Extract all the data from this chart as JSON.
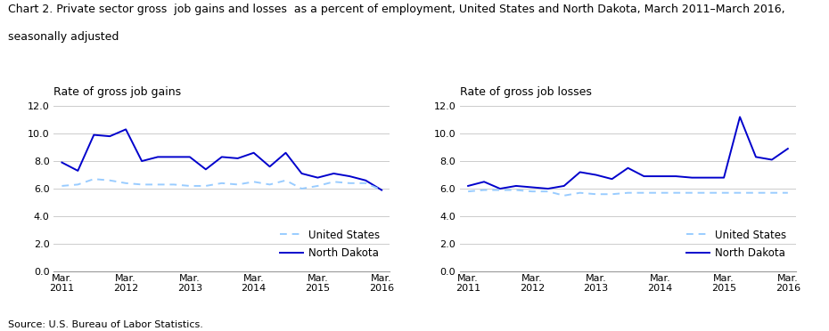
{
  "title_line1": "Chart 2. Private sector gross  job gains and losses  as a percent of employment, United States and North Dakota, March 2011–March 2016,",
  "title_line2": "seasonally adjusted",
  "title_fontsize": 9.0,
  "source": "Source: U.S. Bureau of Labor Statistics.",
  "left_subtitle": "Rate of gross job gains",
  "right_subtitle": "Rate of gross job losses",
  "x_labels": [
    "Mar.\n2011",
    "Mar.\n2012",
    "Mar.\n2013",
    "Mar.\n2014",
    "Mar.\n2015",
    "Mar.\n2016"
  ],
  "x_positions": [
    0,
    4,
    8,
    12,
    16,
    20
  ],
  "num_points": 21,
  "gains_nd": [
    7.9,
    7.3,
    9.9,
    9.8,
    10.3,
    8.0,
    8.3,
    8.3,
    8.3,
    7.4,
    8.3,
    8.2,
    8.6,
    7.6,
    8.6,
    7.1,
    6.8,
    7.1,
    6.9,
    6.6,
    5.9
  ],
  "gains_us": [
    6.2,
    6.3,
    6.7,
    6.6,
    6.4,
    6.3,
    6.3,
    6.3,
    6.2,
    6.2,
    6.4,
    6.3,
    6.5,
    6.3,
    6.6,
    6.0,
    6.2,
    6.5,
    6.4,
    6.4,
    5.9
  ],
  "losses_nd": [
    6.2,
    6.5,
    6.0,
    6.2,
    6.1,
    6.0,
    6.2,
    7.2,
    7.0,
    6.7,
    7.5,
    6.9,
    6.9,
    6.9,
    6.8,
    6.8,
    6.8,
    11.2,
    8.3,
    8.1,
    8.9
  ],
  "losses_us": [
    5.8,
    5.9,
    5.9,
    5.9,
    5.8,
    5.8,
    5.5,
    5.7,
    5.6,
    5.6,
    5.7,
    5.7,
    5.7,
    5.7,
    5.7,
    5.7,
    5.7,
    5.7,
    5.7,
    5.7,
    5.7
  ],
  "ylim": [
    0,
    12.0
  ],
  "yticks": [
    0.0,
    2.0,
    4.0,
    6.0,
    8.0,
    10.0,
    12.0
  ],
  "ytick_labels": [
    "0.0",
    "2.0",
    "4.0",
    "6.0",
    "8.0",
    "10.0",
    "12.0"
  ],
  "nd_color": "#0000cc",
  "us_color": "#99ccff",
  "legend_us_label": "United States",
  "legend_nd_label": "North Dakota",
  "grid_color": "#cccccc",
  "bg_color": "#ffffff"
}
